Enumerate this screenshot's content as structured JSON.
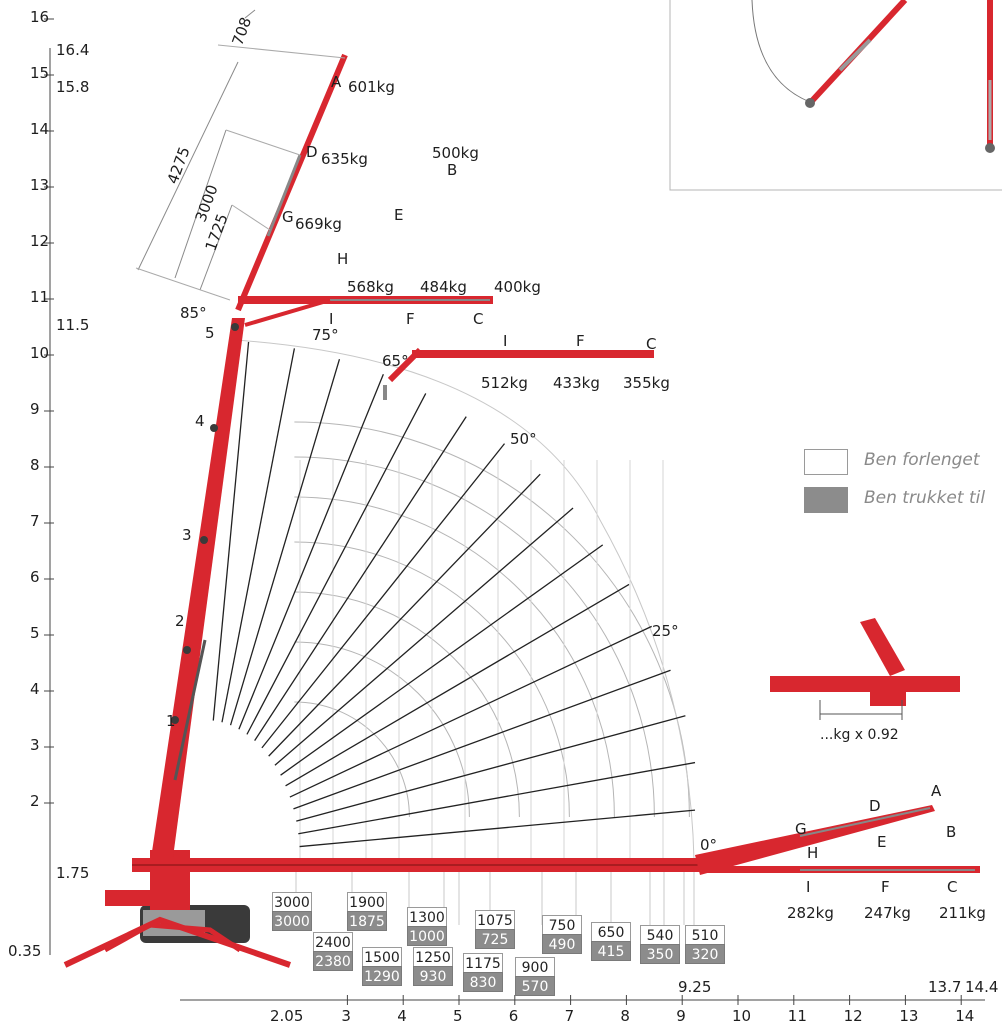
{
  "y_axis": {
    "ticks": [
      "2",
      "3",
      "4",
      "5",
      "6",
      "7",
      "8",
      "9",
      "10",
      "11",
      "12",
      "13",
      "14",
      "15",
      "16"
    ],
    "special_values": [
      "16.4",
      "15.8",
      "11.5",
      "1.75",
      "0.35"
    ]
  },
  "x_axis": {
    "ticks": [
      "3",
      "4",
      "5",
      "6",
      "7",
      "8",
      "9",
      "10",
      "11",
      "12",
      "13",
      "14"
    ],
    "special_values": [
      "2.05",
      "9.25",
      "13.7",
      "14.4"
    ]
  },
  "boom_segments": [
    "1",
    "2",
    "3",
    "4",
    "5"
  ],
  "dimensions": [
    "708",
    "4275",
    "3000",
    "1725"
  ],
  "angles": [
    "85°",
    "75°",
    "65°",
    "50°",
    "25°",
    "0°"
  ],
  "jib_85": {
    "points": [
      "A",
      "D",
      "G",
      "H",
      "E",
      "B",
      "I",
      "F",
      "C"
    ],
    "loads": [
      "601kg",
      "635kg",
      "669kg",
      "500kg",
      "568kg",
      "484kg",
      "400kg"
    ]
  },
  "jib_65": {
    "points": [
      "I",
      "F",
      "C"
    ],
    "loads": [
      "512kg",
      "433kg",
      "355kg"
    ]
  },
  "jib_0": {
    "points": [
      "A",
      "D",
      "G",
      "H",
      "E",
      "B",
      "I",
      "F",
      "C"
    ],
    "loads": [
      "282kg",
      "247kg",
      "211kg"
    ]
  },
  "legend": {
    "extended": "Ben forlenget",
    "retracted": "Ben trukket til",
    "extended_color": "#ffffff",
    "retracted_color": "#8c8c8c"
  },
  "derate": "...kg x 0.92",
  "capacity_boxes": [
    {
      "top": "3000",
      "bottom": "3000"
    },
    {
      "top": "2400",
      "bottom": "2380"
    },
    {
      "top": "1900",
      "bottom": "1875"
    },
    {
      "top": "1500",
      "bottom": "1290"
    },
    {
      "top": "1300",
      "bottom": "1000"
    },
    {
      "top": "1250",
      "bottom": "930"
    },
    {
      "top": "1175",
      "bottom": "830"
    },
    {
      "top": "1075",
      "bottom": "725"
    },
    {
      "top": "900",
      "bottom": "570"
    },
    {
      "top": "750",
      "bottom": "490"
    },
    {
      "top": "650",
      "bottom": "415"
    },
    {
      "top": "540",
      "bottom": "350"
    },
    {
      "top": "510",
      "bottom": "320"
    }
  ],
  "colors": {
    "crane_red": "#d8272f",
    "grid_gray": "#b5b5b5",
    "spoke_dark": "#222222"
  }
}
